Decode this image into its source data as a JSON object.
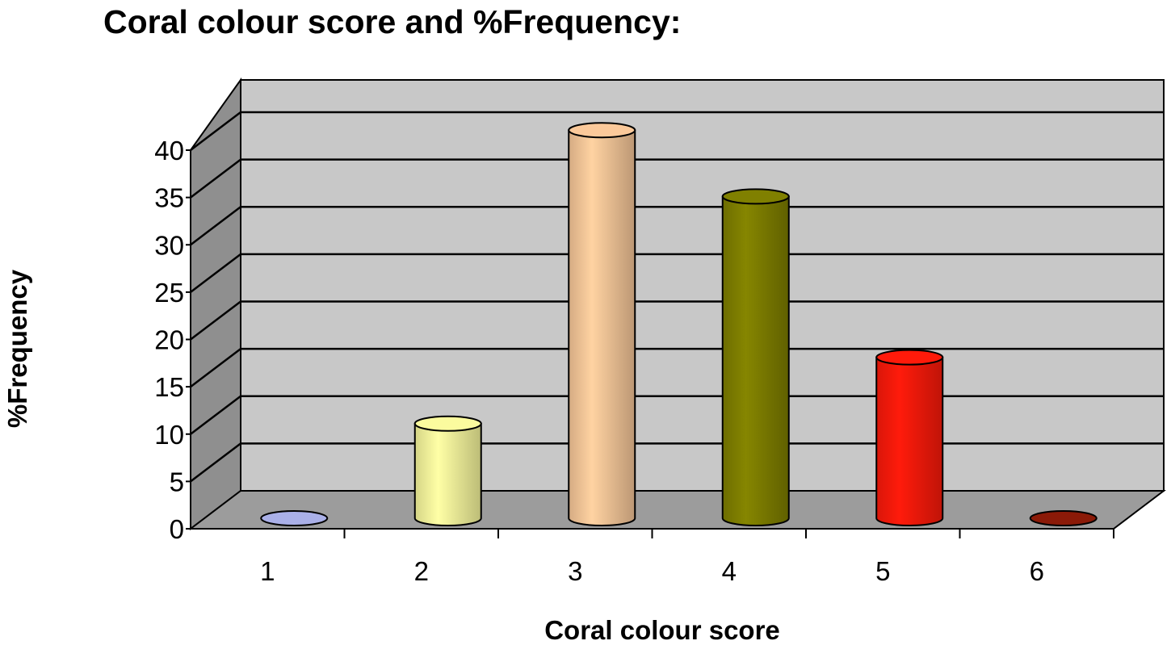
{
  "chart_data": {
    "type": "bar",
    "title": "Coral colour score and %Frequency:",
    "xlabel": "Coral colour score",
    "ylabel": "%Frequency",
    "categories": [
      "1",
      "2",
      "3",
      "4",
      "5",
      "6"
    ],
    "values": [
      0,
      10,
      41,
      34,
      17,
      0
    ],
    "colors": [
      "#aab0e8",
      "#fbfb9e",
      "#fbc99a",
      "#808000",
      "#ff1a0a",
      "#8b1a08"
    ],
    "ylim": [
      0,
      40
    ],
    "yticks": [
      "0",
      "5",
      "10",
      "15",
      "20",
      "25",
      "30",
      "35",
      "40"
    ],
    "grid": true,
    "style": "3d-cylinder",
    "background_color": "#c8c8c8",
    "floor_color": "#9c9c9c"
  }
}
